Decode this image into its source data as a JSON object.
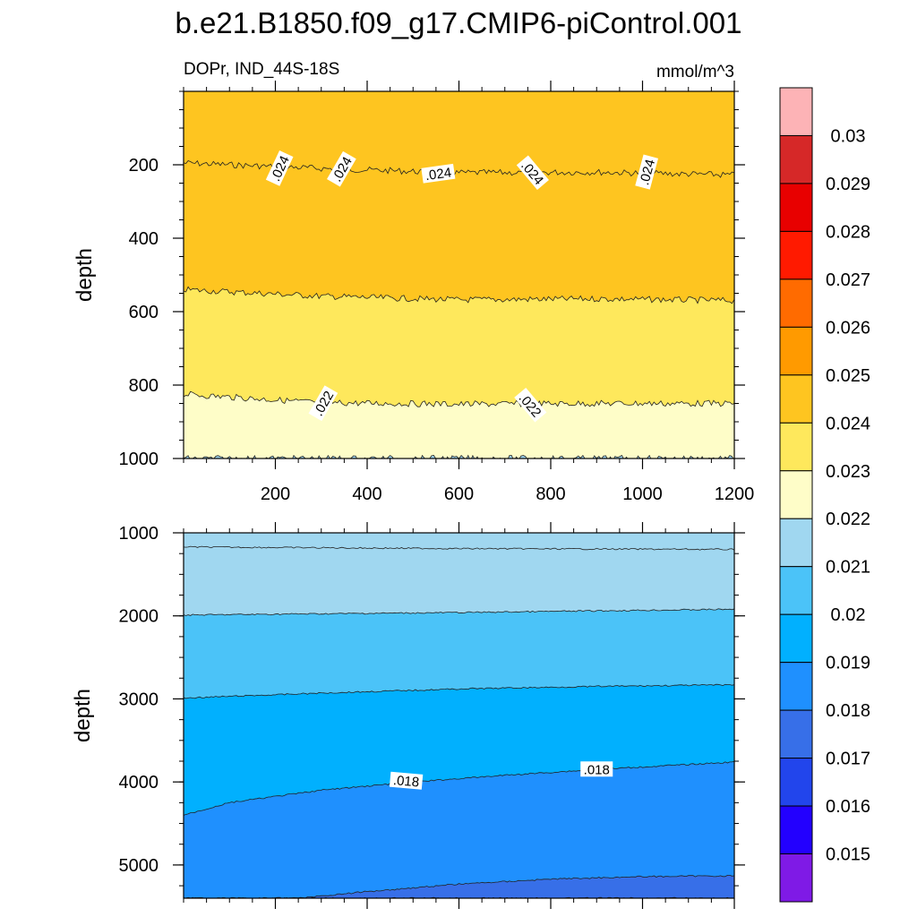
{
  "figure": {
    "title": "b.e21.B1850.f09_g17.CMIP6-piControl.001",
    "subtitle_left": "DOPr, IND_44S-18S",
    "subtitle_right": "mmol/m^3"
  },
  "chart_data": [
    {
      "type": "heatmap",
      "panel": "upper",
      "ylabel": "depth",
      "xlim": [
        0,
        1200
      ],
      "ylim": [
        1000,
        0
      ],
      "x_ticks": [
        200,
        400,
        600,
        800,
        1000,
        1200
      ],
      "y_ticks": [
        200,
        400,
        600,
        800,
        1000
      ],
      "contours": [
        {
          "level": 0.024,
          "color": "#fec520",
          "depth_at_x": [
            [
              0,
              195
            ],
            [
              300,
              210
            ],
            [
              600,
              222
            ],
            [
              900,
              220
            ],
            [
              1200,
              228
            ]
          ]
        },
        {
          "level": 0.023,
          "color": "#fee85c",
          "depth_at_x": [
            [
              0,
              540
            ],
            [
              300,
              558
            ],
            [
              600,
              568
            ],
            [
              900,
              565
            ],
            [
              1200,
              570
            ]
          ]
        },
        {
          "level": 0.022,
          "color": "#fefdc8",
          "depth_at_x": [
            [
              0,
              825
            ],
            [
              300,
              848
            ],
            [
              600,
              852
            ],
            [
              900,
              850
            ],
            [
              1200,
              850
            ]
          ]
        },
        {
          "level": 0.021,
          "color": "#a0d7f0",
          "depth_at_x": [
            [
              0,
              1000
            ],
            [
              1200,
              1000
            ]
          ]
        }
      ],
      "contour_labels": [
        {
          "text": ".024",
          "x": 210,
          "y": 210
        },
        {
          "text": ".024",
          "x": 345,
          "y": 212
        },
        {
          "text": ".024",
          "x": 555,
          "y": 225
        },
        {
          "text": ".024",
          "x": 760,
          "y": 222
        },
        {
          "text": ".024",
          "x": 1010,
          "y": 220
        },
        {
          "text": ".022",
          "x": 305,
          "y": 850
        },
        {
          "text": ".022",
          "x": 755,
          "y": 855
        }
      ]
    },
    {
      "type": "heatmap",
      "panel": "lower",
      "ylabel": "depth",
      "xlim": [
        0,
        1200
      ],
      "ylim": [
        5400,
        1000
      ],
      "x_ticks": [
        200,
        400,
        600,
        800,
        1000,
        1200
      ],
      "y_ticks": [
        1000,
        2000,
        3000,
        4000,
        5000
      ],
      "contours": [
        {
          "level": 0.021,
          "color": "#a0d7f0",
          "depth_at_x": [
            [
              0,
              1170
            ],
            [
              600,
              1190
            ],
            [
              1200,
              1200
            ]
          ]
        },
        {
          "level": 0.02,
          "color": "#4bc3f8",
          "depth_at_x": [
            [
              0,
              1990
            ],
            [
              600,
              1960
            ],
            [
              1200,
              1920
            ]
          ]
        },
        {
          "level": 0.019,
          "color": "#01b0fe",
          "depth_at_x": [
            [
              0,
              2990
            ],
            [
              300,
              2930
            ],
            [
              600,
              2880
            ],
            [
              900,
              2850
            ],
            [
              1200,
              2830
            ]
          ]
        },
        {
          "level": 0.018,
          "color": "#1f90fe",
          "depth_at_x": [
            [
              0,
              4400
            ],
            [
              100,
              4250
            ],
            [
              300,
              4100
            ],
            [
              500,
              4000
            ],
            [
              700,
              3920
            ],
            [
              900,
              3850
            ],
            [
              1200,
              3760
            ]
          ]
        },
        {
          "level": 0.017,
          "color": "#376fe8",
          "depth_at_x": [
            [
              250,
              5400
            ],
            [
              400,
              5320
            ],
            [
              600,
              5230
            ],
            [
              800,
              5170
            ],
            [
              1000,
              5140
            ],
            [
              1200,
              5130
            ]
          ]
        },
        {
          "level": 0.016,
          "color": "#2245ec",
          "depth_at_x": [
            [
              1200,
              5400
            ]
          ]
        }
      ],
      "contour_labels": [
        {
          "text": ".018",
          "x": 485,
          "y": 3990
        },
        {
          "text": ".018",
          "x": 900,
          "y": 3850
        }
      ]
    }
  ],
  "colorbar": {
    "colors": [
      "#fdb3b6",
      "#d62828",
      "#e80000",
      "#ff1a00",
      "#ff6b00",
      "#ff9a00",
      "#fec520",
      "#fee85c",
      "#fefdc8",
      "#a0d7f0",
      "#4bc3f8",
      "#01b0fe",
      "#1f90fe",
      "#376fe8",
      "#2245ec",
      "#2300fe",
      "#7f1ae6"
    ],
    "labels": [
      "0.03",
      "0.029",
      "0.028",
      "0.027",
      "0.026",
      "0.025",
      "0.024",
      "0.023",
      "0.022",
      "0.021",
      "0.02",
      "0.019",
      "0.018",
      "0.017",
      "0.016",
      "0.015"
    ]
  }
}
